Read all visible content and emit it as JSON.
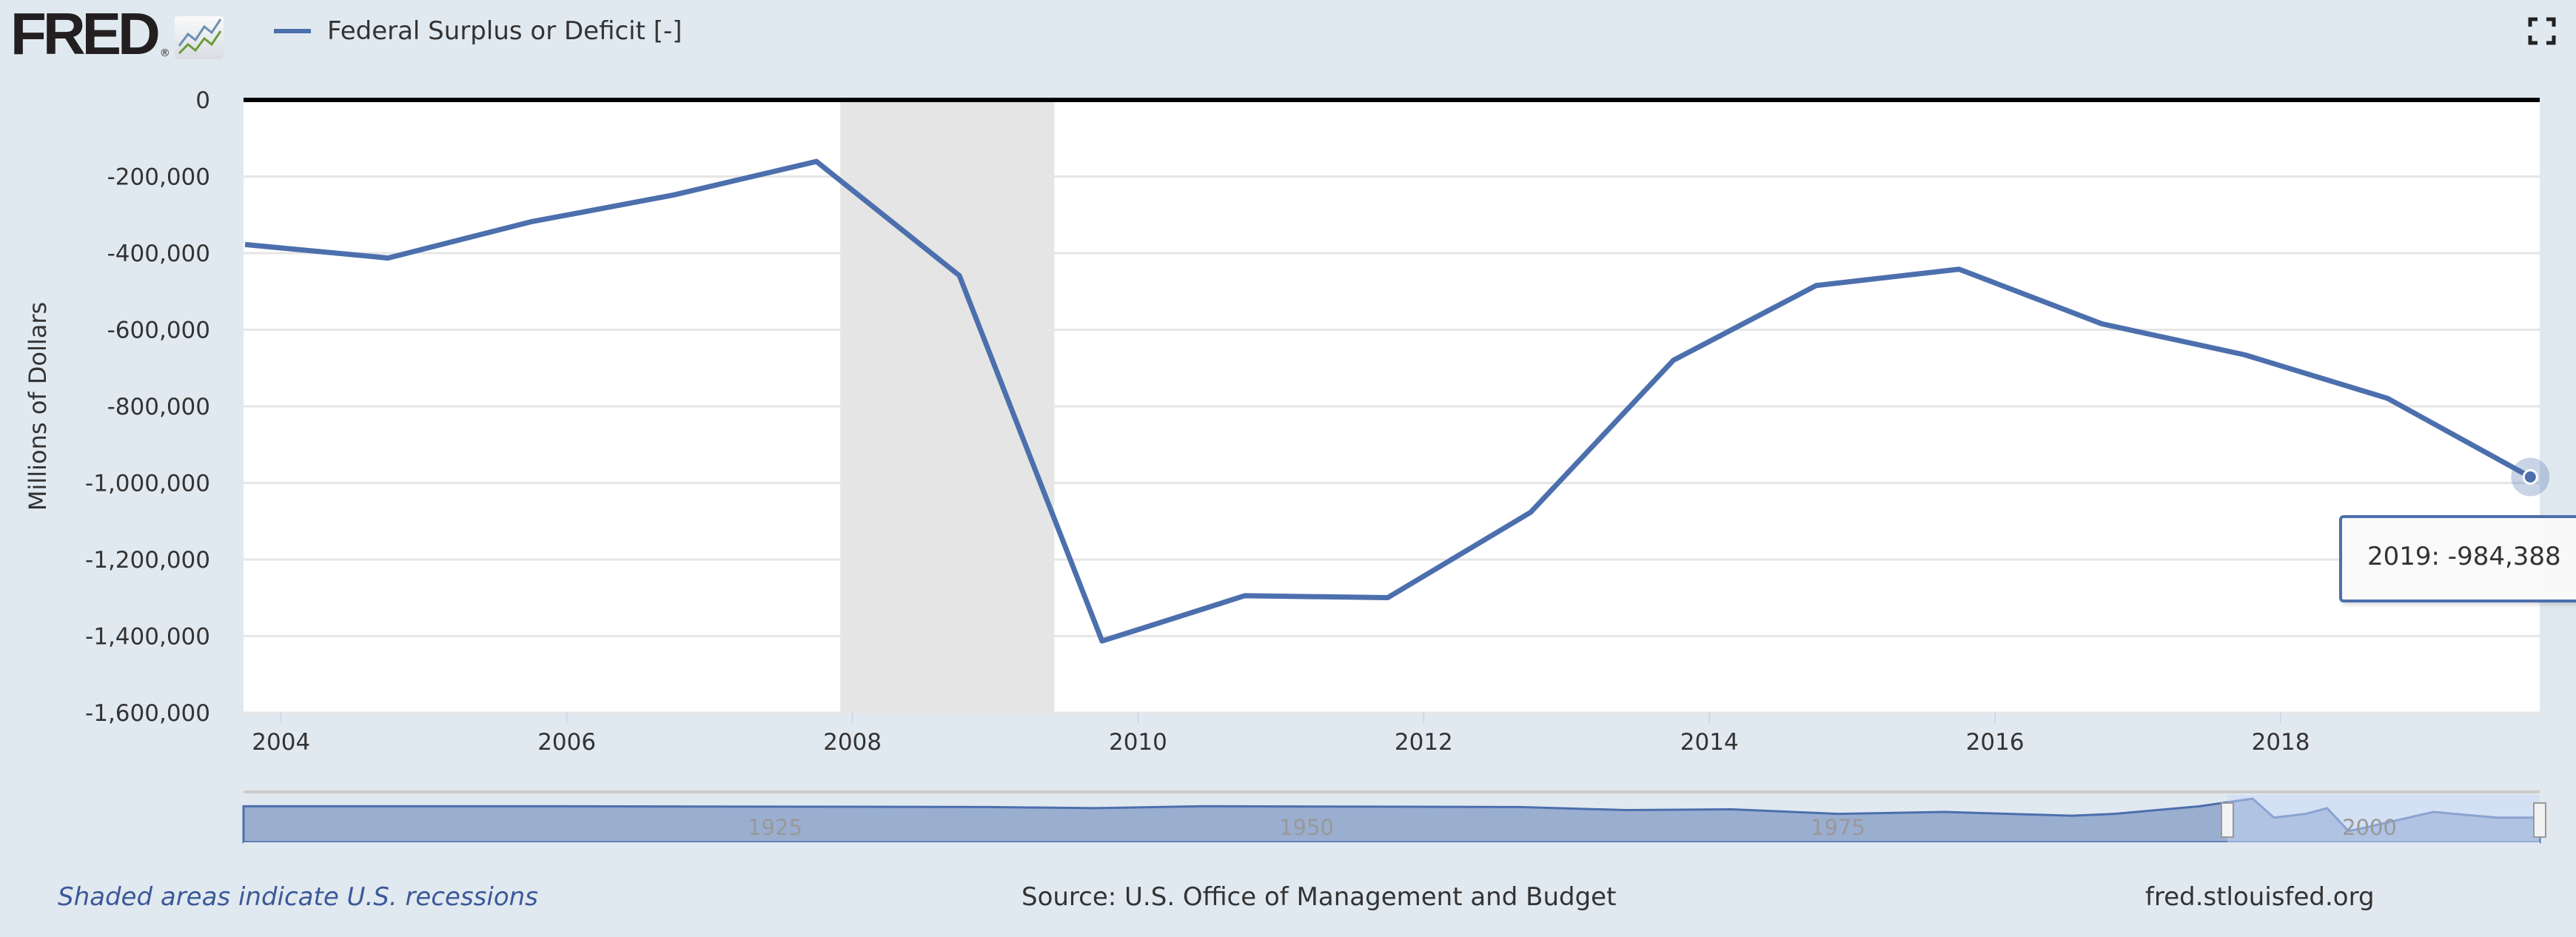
{
  "header": {
    "logo": "FRED",
    "series_label": "Federal Surplus or Deficit [-]",
    "series_color": "#4c6fad",
    "fullscreen_icon": "fullscreen-icon"
  },
  "chart_data": {
    "type": "line",
    "title": "",
    "xlabel": "",
    "ylabel": "Millions of Dollars",
    "ylim": [
      -1600000,
      0
    ],
    "yticks": [
      0,
      -200000,
      -400000,
      -600000,
      -800000,
      -1000000,
      -1200000,
      -1400000,
      -1600000
    ],
    "ytick_labels": [
      "0",
      "-200,000",
      "-400,000",
      "-600,000",
      "-800,000",
      "-1,000,000",
      "-1,200,000",
      "-1,400,000",
      "-1,600,000"
    ],
    "xlim": [
      "2003-09-27",
      "2019-10-25"
    ],
    "xtick_labels": [
      "2004",
      "2006",
      "2008",
      "2010",
      "2012",
      "2014",
      "2016",
      "2018"
    ],
    "grid": true,
    "legend": "top-left",
    "recessions": [
      {
        "start": "2007-12-01",
        "end": "2009-06-01"
      }
    ],
    "series": [
      {
        "name": "Federal Surplus or Deficit [-]",
        "color": "#4c6fad",
        "x": [
          "2003-10-01",
          "2004-10-01",
          "2005-10-01",
          "2006-10-01",
          "2007-10-01",
          "2008-10-01",
          "2009-10-01",
          "2010-10-01",
          "2011-10-01",
          "2012-10-01",
          "2013-10-01",
          "2014-10-01",
          "2015-10-01",
          "2016-10-01",
          "2017-10-01",
          "2018-10-01",
          "2019-10-01"
        ],
        "values": [
          -377585,
          -412727,
          -318346,
          -248181,
          -160701,
          -458553,
          -1412688,
          -1294373,
          -1299599,
          -1076573,
          -679775,
          -484600,
          -441960,
          -584651,
          -665446,
          -779137,
          -984388
        ]
      }
    ],
    "navigator": {
      "xtick_labels": [
        "1925",
        "1950",
        "1975",
        "2000"
      ]
    }
  },
  "tooltip": {
    "label": "2019:",
    "value": "-984,388"
  },
  "footer": {
    "recession_note": "Shaded areas indicate U.S. recessions",
    "source": "Source: U.S. Office of Management and Budget",
    "site": "fred.stlouisfed.org"
  }
}
